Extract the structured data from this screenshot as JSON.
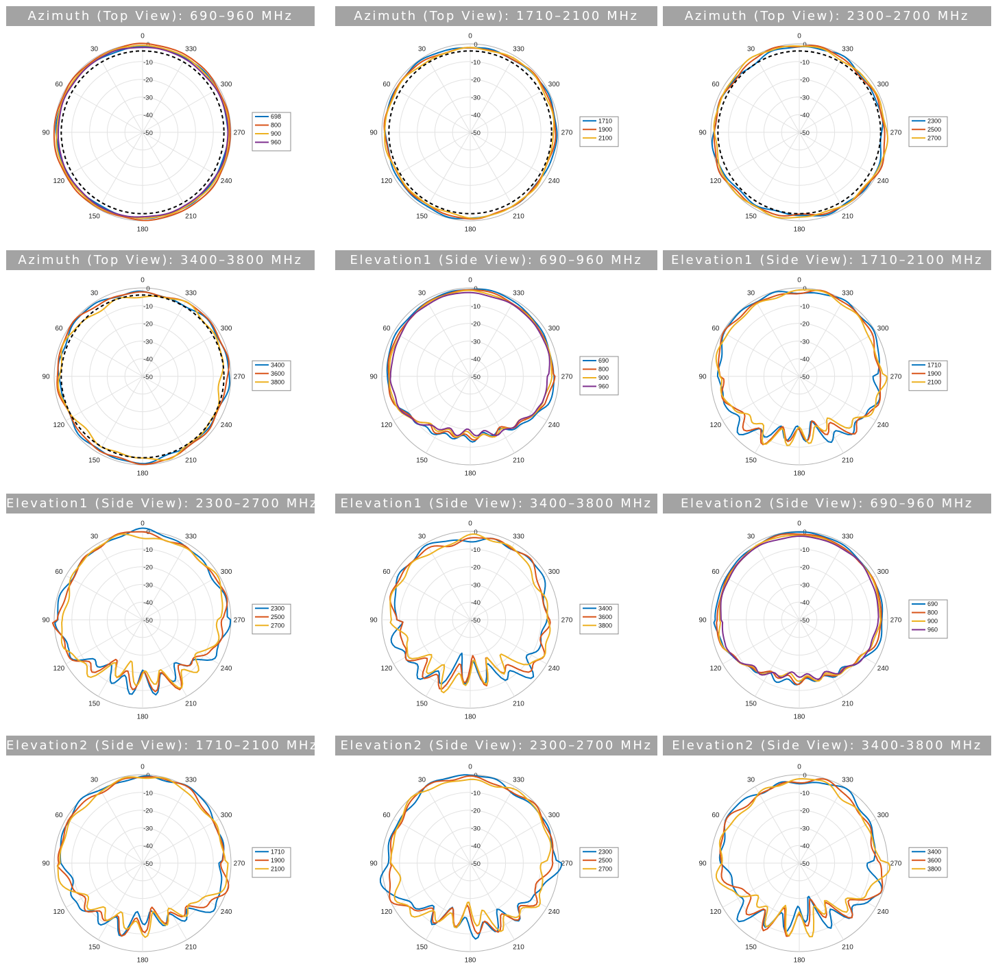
{
  "chart_data": [
    {
      "type": "polar-line",
      "title": "Azimuth (Top View): 690–960 MHz",
      "angle_ticks": [
        "0",
        "30",
        "60",
        "90",
        "120",
        "150",
        "180",
        "210",
        "240",
        "270",
        "300",
        "330"
      ],
      "radial_ticks": [
        "0",
        "-10",
        "-20",
        "-30",
        "-40",
        "-50"
      ],
      "rlim": [
        -50,
        0
      ],
      "legend_placement": "right",
      "reference_dashed": true,
      "series": [
        {
          "name": "698",
          "color": "#0072bd",
          "base": -1.0,
          "amp": 0.7,
          "seed": 1
        },
        {
          "name": "800",
          "color": "#d95319",
          "base": 0.3,
          "amp": 0.8,
          "seed": 2
        },
        {
          "name": "900",
          "color": "#edb120",
          "base": -0.6,
          "amp": 0.6,
          "seed": 3
        },
        {
          "name": "960",
          "color": "#7e2f8e",
          "base": -1.3,
          "amp": 0.6,
          "seed": 4
        }
      ]
    },
    {
      "type": "polar-line",
      "title": "Azimuth (Top View): 1710–2100 MHz",
      "angle_ticks": [
        "0",
        "30",
        "60",
        "90",
        "120",
        "150",
        "180",
        "210",
        "240",
        "270",
        "300",
        "330"
      ],
      "radial_ticks": [
        "0",
        "-10",
        "-20",
        "-30",
        "-40",
        "-50"
      ],
      "rlim": [
        -50,
        0
      ],
      "legend_placement": "right",
      "reference_dashed": true,
      "series": [
        {
          "name": "1710",
          "color": "#0072bd",
          "base": -1.0,
          "amp": 1.2,
          "seed": 5
        },
        {
          "name": "1900",
          "color": "#d95319",
          "base": -1.4,
          "amp": 1.2,
          "seed": 6
        },
        {
          "name": "2100",
          "color": "#edb120",
          "base": -1.7,
          "amp": 1.4,
          "seed": 7
        }
      ]
    },
    {
      "type": "polar-line",
      "title": "Azimuth (Top View): 2300–2700 MHz",
      "angle_ticks": [
        "0",
        "30",
        "60",
        "90",
        "120",
        "150",
        "180",
        "210",
        "240",
        "270",
        "300",
        "330"
      ],
      "radial_ticks": [
        "0",
        "-10",
        "-20",
        "-30",
        "-40",
        "-50"
      ],
      "rlim": [
        -50,
        0
      ],
      "legend_placement": "right",
      "reference_dashed": true,
      "series": [
        {
          "name": "2300",
          "color": "#0072bd",
          "base": -1.5,
          "amp": 2.2,
          "seed": 8
        },
        {
          "name": "2500",
          "color": "#d95319",
          "base": -1.0,
          "amp": 2.2,
          "seed": 9
        },
        {
          "name": "2700",
          "color": "#edb120",
          "base": -0.8,
          "amp": 1.8,
          "seed": 10
        }
      ]
    },
    {
      "type": "polar-line",
      "title": "Azimuth (Top View): 3400–3800 MHz",
      "angle_ticks": [
        "0",
        "30",
        "60",
        "90",
        "120",
        "150",
        "180",
        "210",
        "240",
        "270",
        "300",
        "330"
      ],
      "radial_ticks": [
        "0",
        "-10",
        "-20",
        "-30",
        "-40",
        "-50"
      ],
      "rlim": [
        -50,
        0
      ],
      "legend_placement": "right",
      "reference_dashed": true,
      "series": [
        {
          "name": "3400",
          "color": "#0072bd",
          "base": -1.6,
          "amp": 2.2,
          "seed": 11
        },
        {
          "name": "3600",
          "color": "#d95319",
          "base": -1.3,
          "amp": 2.0,
          "seed": 12
        },
        {
          "name": "3800",
          "color": "#edb120",
          "base": -3.2,
          "amp": 3.0,
          "seed": 13
        }
      ]
    },
    {
      "type": "polar-line",
      "title": "Elevation1 (Side View): 690–960 MHz",
      "angle_ticks": [
        "0",
        "30",
        "60",
        "90",
        "120",
        "150",
        "180",
        "210",
        "240",
        "270",
        "300",
        "330"
      ],
      "radial_ticks": [
        "0",
        "-10",
        "-20",
        "-30",
        "-40",
        "-50"
      ],
      "rlim": [
        -50,
        0
      ],
      "legend_placement": "right",
      "series": [
        {
          "name": "690",
          "color": "#0072bd",
          "base": -0.8,
          "amp": 1.2,
          "seed": 14
        },
        {
          "name": "800",
          "color": "#d95319",
          "base": -1.5,
          "amp": 1.2,
          "seed": 15
        },
        {
          "name": "900",
          "color": "#edb120",
          "base": -2.0,
          "amp": 1.2,
          "seed": 16
        },
        {
          "name": "960",
          "color": "#7e2f8e",
          "base": -2.6,
          "amp": 1.2,
          "seed": 17
        }
      ]
    },
    {
      "type": "polar-line",
      "title": "Elevation1 (Side View): 1710–2100 MHz",
      "angle_ticks": [
        "0",
        "30",
        "60",
        "90",
        "120",
        "150",
        "180",
        "210",
        "240",
        "270",
        "300",
        "330"
      ],
      "radial_ticks": [
        "0",
        "-10",
        "-20",
        "-30",
        "-40",
        "-50"
      ],
      "rlim": [
        -50,
        0
      ],
      "legend_placement": "right",
      "series": [
        {
          "name": "1710",
          "color": "#0072bd",
          "base": -1.0,
          "amp": 3.5,
          "seed": 18
        },
        {
          "name": "1900",
          "color": "#d95319",
          "base": -1.5,
          "amp": 3.5,
          "seed": 19
        },
        {
          "name": "2100",
          "color": "#edb120",
          "base": -2.0,
          "amp": 3.5,
          "seed": 20
        }
      ]
    },
    {
      "type": "polar-line",
      "title": "Elevation1 (Side View): 2300–2700 MHz",
      "angle_ticks": [
        "0",
        "30",
        "60",
        "90",
        "120",
        "150",
        "180",
        "210",
        "240",
        "270",
        "300",
        "330"
      ],
      "radial_ticks": [
        "0",
        "-10",
        "-20",
        "-30",
        "-40",
        "-50"
      ],
      "rlim": [
        -50,
        0
      ],
      "legend_placement": "right",
      "series": [
        {
          "name": "2300",
          "color": "#0072bd",
          "base": -1.0,
          "amp": 4.0,
          "seed": 21
        },
        {
          "name": "2500",
          "color": "#d95319",
          "base": -1.5,
          "amp": 4.0,
          "seed": 22
        },
        {
          "name": "2700",
          "color": "#edb120",
          "base": -2.2,
          "amp": 4.0,
          "seed": 23
        }
      ]
    },
    {
      "type": "polar-line",
      "title": "Elevation1 (Side View): 3400–3800 MHz",
      "angle_ticks": [
        "0",
        "30",
        "60",
        "90",
        "120",
        "150",
        "180",
        "210",
        "240",
        "270",
        "300",
        "330"
      ],
      "radial_ticks": [
        "0",
        "-10",
        "-20",
        "-30",
        "-40",
        "-50"
      ],
      "rlim": [
        -50,
        0
      ],
      "legend_placement": "right",
      "series": [
        {
          "name": "3400",
          "color": "#0072bd",
          "base": -3.0,
          "amp": 5.0,
          "seed": 24
        },
        {
          "name": "3600",
          "color": "#d95319",
          "base": -3.5,
          "amp": 5.0,
          "seed": 25
        },
        {
          "name": "3800",
          "color": "#edb120",
          "base": -4.0,
          "amp": 5.0,
          "seed": 26
        }
      ]
    },
    {
      "type": "polar-line",
      "title": "Elevation2 (Side View): 690–960 MHz",
      "angle_ticks": [
        "0",
        "30",
        "60",
        "90",
        "120",
        "150",
        "180",
        "210",
        "240",
        "270",
        "300",
        "330"
      ],
      "radial_ticks": [
        "0",
        "-10",
        "-20",
        "-30",
        "-40",
        "-50"
      ],
      "rlim": [
        -50,
        0
      ],
      "legend_placement": "right",
      "series": [
        {
          "name": "690",
          "color": "#0072bd",
          "base": -0.8,
          "amp": 1.2,
          "seed": 27
        },
        {
          "name": "800",
          "color": "#d95319",
          "base": -1.5,
          "amp": 1.2,
          "seed": 28
        },
        {
          "name": "900",
          "color": "#edb120",
          "base": -2.0,
          "amp": 1.2,
          "seed": 29
        },
        {
          "name": "960",
          "color": "#7e2f8e",
          "base": -2.6,
          "amp": 1.2,
          "seed": 30
        }
      ]
    },
    {
      "type": "polar-line",
      "title": "Elevation2 (Side View): 1710–2100 MHz",
      "angle_ticks": [
        "0",
        "30",
        "60",
        "90",
        "120",
        "150",
        "180",
        "210",
        "240",
        "270",
        "300",
        "330"
      ],
      "radial_ticks": [
        "0",
        "-10",
        "-20",
        "-30",
        "-40",
        "-50"
      ],
      "rlim": [
        -50,
        0
      ],
      "legend_placement": "right",
      "series": [
        {
          "name": "1710",
          "color": "#0072bd",
          "base": -1.0,
          "amp": 3.5,
          "seed": 31
        },
        {
          "name": "1900",
          "color": "#d95319",
          "base": -1.5,
          "amp": 3.5,
          "seed": 32
        },
        {
          "name": "2100",
          "color": "#edb120",
          "base": -2.0,
          "amp": 3.5,
          "seed": 33
        }
      ]
    },
    {
      "type": "polar-line",
      "title": "Elevation2 (Side View): 2300–2700 MHz",
      "angle_ticks": [
        "0",
        "30",
        "60",
        "90",
        "120",
        "150",
        "180",
        "210",
        "240",
        "270",
        "300",
        "330"
      ],
      "radial_ticks": [
        "0",
        "-10",
        "-20",
        "-30",
        "-40",
        "-50"
      ],
      "rlim": [
        -50,
        0
      ],
      "legend_placement": "right",
      "series": [
        {
          "name": "2300",
          "color": "#0072bd",
          "base": -1.0,
          "amp": 4.0,
          "seed": 34
        },
        {
          "name": "2500",
          "color": "#d95319",
          "base": -1.5,
          "amp": 4.0,
          "seed": 35
        },
        {
          "name": "2700",
          "color": "#edb120",
          "base": -2.2,
          "amp": 4.0,
          "seed": 36
        }
      ]
    },
    {
      "type": "polar-line",
      "title": "Elevation2 (Side View): 3400-3800 MHz",
      "angle_ticks": [
        "0",
        "30",
        "60",
        "90",
        "120",
        "150",
        "180",
        "210",
        "240",
        "270",
        "300",
        "330"
      ],
      "radial_ticks": [
        "0",
        "-10",
        "-20",
        "-30",
        "-40",
        "-50"
      ],
      "rlim": [
        -50,
        0
      ],
      "legend_placement": "right",
      "series": [
        {
          "name": "3400",
          "color": "#0072bd",
          "base": -3.0,
          "amp": 5.0,
          "seed": 37
        },
        {
          "name": "3600",
          "color": "#d95319",
          "base": -3.5,
          "amp": 5.0,
          "seed": 38
        },
        {
          "name": "3800",
          "color": "#edb120",
          "base": -4.0,
          "amp": 5.0,
          "seed": 39
        }
      ]
    }
  ]
}
